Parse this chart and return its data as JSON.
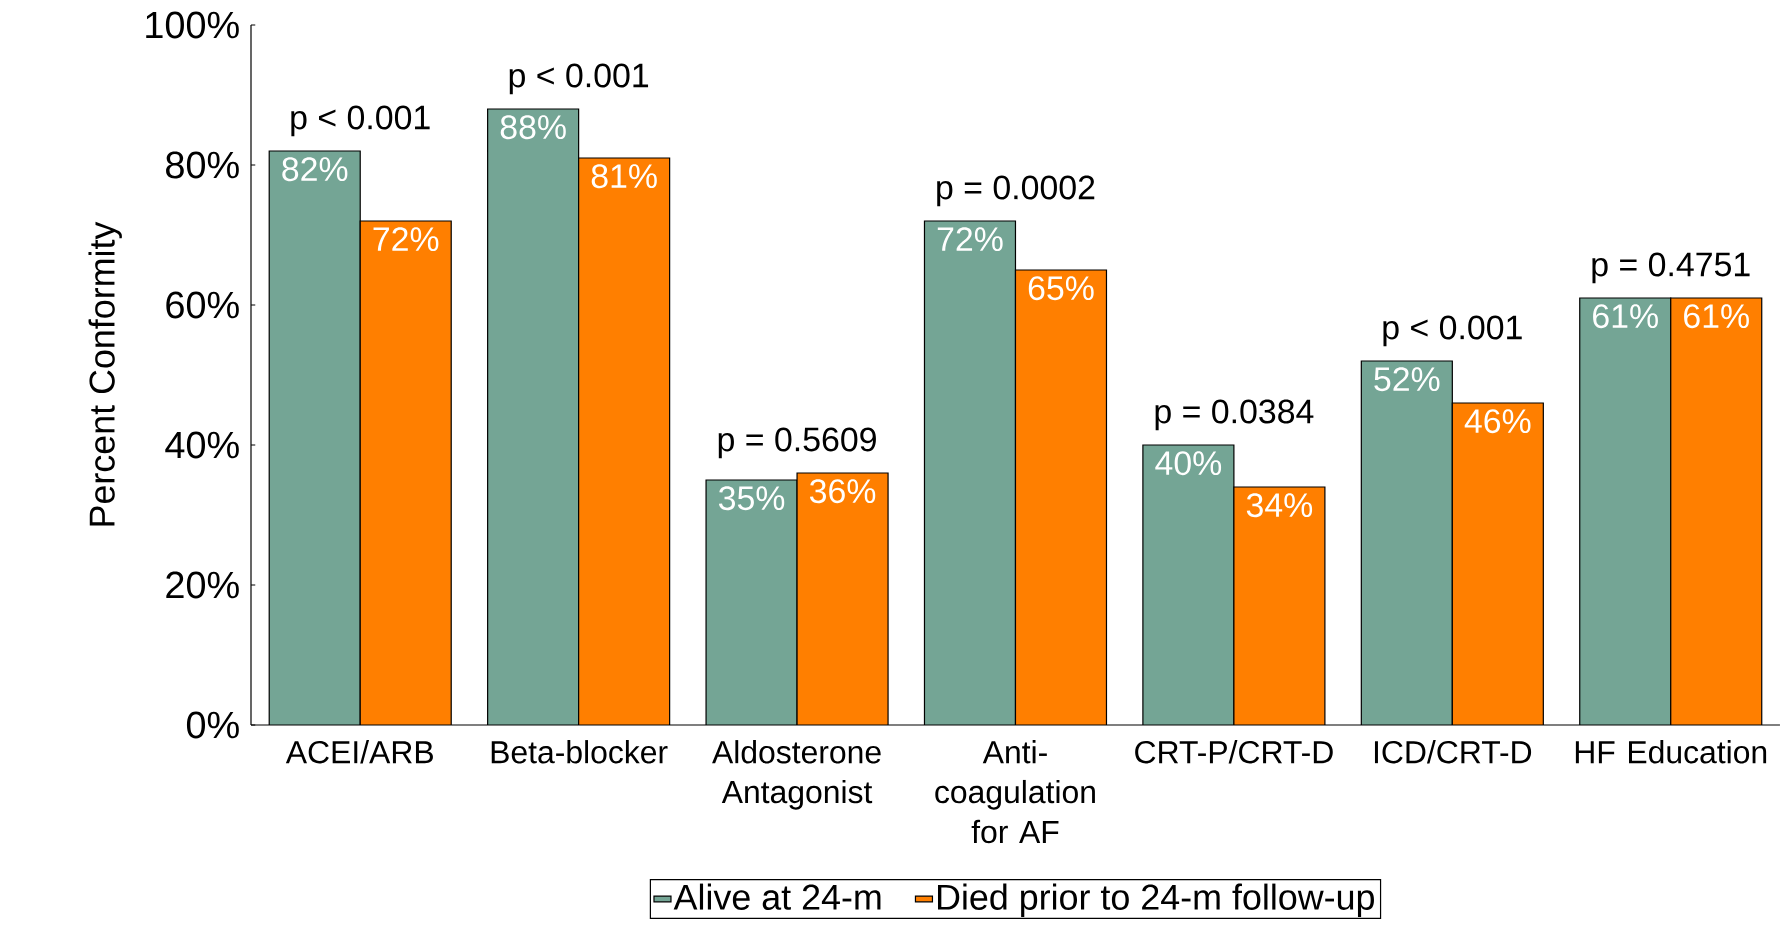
{
  "chart_data": {
    "type": "bar",
    "ylabel": "Percent Conformity",
    "categories": [
      "ACEI/ARB",
      "Beta-blocker",
      "Aldosterone Antagonist",
      "Anti-coagulation for AF",
      "CRT-P/CRT-D",
      "ICD/CRT-D",
      "HF Education"
    ],
    "series": [
      {
        "name": "Alive at 24-m",
        "color": "#74a595",
        "values": [
          82,
          88,
          35,
          72,
          40,
          52,
          61
        ],
        "value_labels": [
          "82%",
          "88%",
          "35%",
          "72%",
          "40%",
          "52%",
          "61%"
        ]
      },
      {
        "name": "Died prior to 24-m follow-up",
        "color": "#ff7f00",
        "values": [
          72,
          81,
          36,
          65,
          34,
          46,
          61
        ],
        "value_labels": [
          "72%",
          "81%",
          "36%",
          "65%",
          "34%",
          "46%",
          "61%"
        ]
      }
    ],
    "ylim": [
      0,
      100
    ],
    "yticks": [
      {
        "value": 0,
        "label": "0%"
      },
      {
        "value": 20,
        "label": "20%"
      },
      {
        "value": 40,
        "label": "40%"
      },
      {
        "value": 60,
        "label": "60%"
      },
      {
        "value": 80,
        "label": "80%"
      },
      {
        "value": 100,
        "label": "100%"
      }
    ],
    "annotations": [
      "p < 0.001",
      "p < 0.001",
      "p = 0.5609",
      "p = 0.0002",
      "p = 0.0384",
      "p < 0.001",
      "p = 0.4751"
    ],
    "legend": "bottom",
    "grid": false
  }
}
